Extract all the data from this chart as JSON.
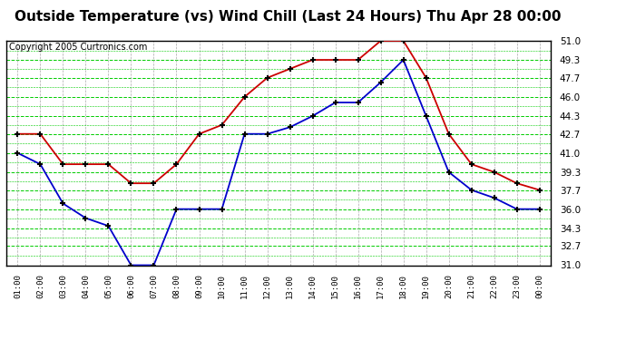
{
  "title": "Outside Temperature (vs) Wind Chill (Last 24 Hours) Thu Apr 28 00:00",
  "copyright": "Copyright 2005 Curtronics.com",
  "x_labels": [
    "01:00",
    "02:00",
    "03:00",
    "04:00",
    "05:00",
    "06:00",
    "07:00",
    "08:00",
    "09:00",
    "10:00",
    "11:00",
    "12:00",
    "13:00",
    "14:00",
    "15:00",
    "16:00",
    "17:00",
    "18:00",
    "19:00",
    "20:00",
    "21:00",
    "22:00",
    "23:00",
    "00:00"
  ],
  "outside_temp": [
    42.7,
    42.7,
    40.0,
    40.0,
    40.0,
    38.3,
    38.3,
    40.0,
    42.7,
    43.5,
    46.0,
    47.7,
    48.5,
    49.3,
    49.3,
    49.3,
    51.0,
    51.0,
    47.7,
    42.7,
    40.0,
    39.3,
    38.3,
    37.7
  ],
  "wind_chill": [
    41.0,
    40.0,
    36.5,
    35.2,
    34.5,
    31.0,
    31.0,
    36.0,
    36.0,
    36.0,
    42.7,
    42.7,
    43.3,
    44.3,
    45.5,
    45.5,
    47.3,
    49.3,
    44.3,
    39.3,
    37.7,
    37.0,
    36.0,
    36.0
  ],
  "ylim": [
    31.0,
    51.0
  ],
  "yticks": [
    31.0,
    32.7,
    34.3,
    36.0,
    37.7,
    39.3,
    41.0,
    42.7,
    44.3,
    46.0,
    47.7,
    49.3,
    51.0
  ],
  "bg_color": "#ffffff",
  "grid_h_color": "#00cc00",
  "grid_v_color": "#aaaaaa",
  "temp_color": "#cc0000",
  "chill_color": "#0000cc",
  "title_fontsize": 11,
  "copyright_fontsize": 7
}
